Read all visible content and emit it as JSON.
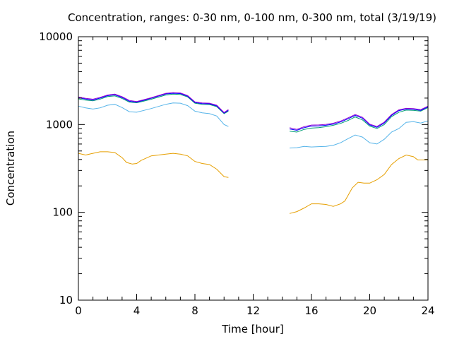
{
  "chart_data": {
    "type": "line",
    "title": "Concentration, ranges: 0-30 nm, 0-100 nm, 0-300 nm, total (3/19/19)",
    "xlabel": "Time [hour]",
    "ylabel": "Concentration",
    "xlim": [
      0,
      24
    ],
    "ylim": [
      10,
      10000
    ],
    "yscale": "log",
    "grid": false,
    "legend": "none",
    "x_ticks": [
      "0",
      "4",
      "8",
      "12",
      "16",
      "20",
      "24"
    ],
    "y_ticks": [
      "10",
      "100",
      "1000",
      "10000"
    ],
    "series": [
      {
        "color": "#e69f00",
        "segments": [
          [
            [
              0,
              470
            ],
            [
              0.5,
              450
            ],
            [
              1,
              470
            ],
            [
              1.5,
              490
            ],
            [
              2,
              490
            ],
            [
              2.5,
              480
            ],
            [
              3,
              420
            ],
            [
              3.3,
              370
            ],
            [
              3.7,
              355
            ],
            [
              4,
              360
            ],
            [
              4.3,
              390
            ],
            [
              5,
              440
            ],
            [
              6,
              460
            ],
            [
              6.5,
              470
            ],
            [
              7,
              460
            ],
            [
              7.5,
              440
            ],
            [
              8,
              380
            ],
            [
              8.5,
              360
            ],
            [
              9,
              350
            ],
            [
              9.5,
              310
            ],
            [
              10,
              255
            ],
            [
              10.3,
              250
            ]
          ],
          [
            [
              14.5,
              97
            ],
            [
              15,
              102
            ],
            [
              15.5,
              112
            ],
            [
              16,
              125
            ],
            [
              16.5,
              125
            ],
            [
              17,
              123
            ],
            [
              17.5,
              117
            ],
            [
              18,
              125
            ],
            [
              18.3,
              135
            ],
            [
              18.8,
              190
            ],
            [
              19.2,
              220
            ],
            [
              19.6,
              215
            ],
            [
              20,
              215
            ],
            [
              20.5,
              235
            ],
            [
              21,
              270
            ],
            [
              21.5,
              350
            ],
            [
              22,
              410
            ],
            [
              22.5,
              450
            ],
            [
              23,
              430
            ],
            [
              23.3,
              395
            ],
            [
              24,
              395
            ]
          ]
        ]
      },
      {
        "color": "#56b4e9",
        "segments": [
          [
            [
              0,
              1620
            ],
            [
              0.5,
              1550
            ],
            [
              1,
              1500
            ],
            [
              1.5,
              1550
            ],
            [
              2,
              1660
            ],
            [
              2.5,
              1700
            ],
            [
              3,
              1560
            ],
            [
              3.5,
              1400
            ],
            [
              4,
              1380
            ],
            [
              4.5,
              1450
            ],
            [
              5,
              1520
            ],
            [
              6,
              1700
            ],
            [
              6.5,
              1760
            ],
            [
              7,
              1750
            ],
            [
              7.5,
              1640
            ],
            [
              8,
              1420
            ],
            [
              8.5,
              1360
            ],
            [
              9,
              1330
            ],
            [
              9.5,
              1250
            ],
            [
              10,
              1000
            ],
            [
              10.3,
              950
            ]
          ],
          [
            [
              14.5,
              540
            ],
            [
              15,
              545
            ],
            [
              15.5,
              565
            ],
            [
              16,
              555
            ],
            [
              16.5,
              560
            ],
            [
              17,
              565
            ],
            [
              17.5,
              580
            ],
            [
              18,
              620
            ],
            [
              18.5,
              690
            ],
            [
              19,
              760
            ],
            [
              19.5,
              720
            ],
            [
              20,
              620
            ],
            [
              20.5,
              600
            ],
            [
              21,
              680
            ],
            [
              21.5,
              820
            ],
            [
              22,
              900
            ],
            [
              22.5,
              1060
            ],
            [
              23,
              1080
            ],
            [
              23.5,
              1040
            ],
            [
              24,
              1100
            ]
          ]
        ]
      },
      {
        "color": "#009e73",
        "segments": [
          [
            [
              0,
              1960
            ],
            [
              0.5,
              1900
            ],
            [
              1,
              1860
            ],
            [
              1.5,
              1950
            ],
            [
              2,
              2080
            ],
            [
              2.5,
              2120
            ],
            [
              3,
              1980
            ],
            [
              3.5,
              1800
            ],
            [
              4,
              1770
            ],
            [
              4.5,
              1850
            ],
            [
              5,
              1940
            ],
            [
              6,
              2170
            ],
            [
              6.5,
              2220
            ],
            [
              7,
              2200
            ],
            [
              7.5,
              2060
            ],
            [
              8,
              1750
            ],
            [
              8.5,
              1700
            ],
            [
              9,
              1690
            ],
            [
              9.5,
              1600
            ],
            [
              10,
              1330
            ],
            [
              10.3,
              1420
            ]
          ],
          [
            [
              14.5,
              840
            ],
            [
              15,
              820
            ],
            [
              15.5,
              880
            ],
            [
              16,
              910
            ],
            [
              16.5,
              920
            ],
            [
              17,
              945
            ],
            [
              17.5,
              980
            ],
            [
              18,
              1030
            ],
            [
              18.5,
              1110
            ],
            [
              19,
              1220
            ],
            [
              19.5,
              1130
            ],
            [
              20,
              960
            ],
            [
              20.5,
              900
            ],
            [
              21,
              1000
            ],
            [
              21.5,
              1230
            ],
            [
              22,
              1380
            ],
            [
              22.5,
              1460
            ],
            [
              23,
              1450
            ],
            [
              23.5,
              1420
            ],
            [
              24,
              1560
            ]
          ]
        ]
      },
      {
        "color": "#0000ff",
        "segments": [
          [
            [
              0,
              2020
            ],
            [
              0.5,
              1950
            ],
            [
              1,
              1900
            ],
            [
              1.5,
              2000
            ],
            [
              2,
              2130
            ],
            [
              2.5,
              2180
            ],
            [
              3,
              2030
            ],
            [
              3.5,
              1840
            ],
            [
              4,
              1800
            ],
            [
              4.5,
              1890
            ],
            [
              5,
              1990
            ],
            [
              6,
              2230
            ],
            [
              6.5,
              2270
            ],
            [
              7,
              2250
            ],
            [
              7.5,
              2100
            ],
            [
              8,
              1780
            ],
            [
              8.5,
              1730
            ],
            [
              9,
              1720
            ],
            [
              9.5,
              1630
            ],
            [
              10,
              1350
            ],
            [
              10.3,
              1450
            ]
          ],
          [
            [
              14.5,
              890
            ],
            [
              15,
              860
            ],
            [
              15.5,
              920
            ],
            [
              16,
              960
            ],
            [
              16.5,
              965
            ],
            [
              17,
              980
            ],
            [
              17.5,
              1010
            ],
            [
              18,
              1070
            ],
            [
              18.5,
              1160
            ],
            [
              19,
              1270
            ],
            [
              19.5,
              1180
            ],
            [
              20,
              990
            ],
            [
              20.5,
              930
            ],
            [
              21,
              1040
            ],
            [
              21.5,
              1270
            ],
            [
              22,
              1440
            ],
            [
              22.5,
              1500
            ],
            [
              23,
              1490
            ],
            [
              23.5,
              1450
            ],
            [
              24,
              1590
            ]
          ]
        ]
      },
      {
        "color": "#9400d3",
        "segments": [
          [
            [
              0,
              2060
            ],
            [
              0.5,
              1990
            ],
            [
              1,
              1940
            ],
            [
              1.5,
              2040
            ],
            [
              2,
              2170
            ],
            [
              2.5,
              2220
            ],
            [
              3,
              2070
            ],
            [
              3.5,
              1880
            ],
            [
              4,
              1830
            ],
            [
              4.5,
              1920
            ],
            [
              5,
              2020
            ],
            [
              6,
              2270
            ],
            [
              6.5,
              2310
            ],
            [
              7,
              2290
            ],
            [
              7.5,
              2140
            ],
            [
              8,
              1810
            ],
            [
              8.5,
              1760
            ],
            [
              9,
              1750
            ],
            [
              9.5,
              1660
            ],
            [
              10,
              1370
            ],
            [
              10.3,
              1480
            ]
          ],
          [
            [
              14.5,
              920
            ],
            [
              15,
              880
            ],
            [
              15.5,
              945
            ],
            [
              16,
              985
            ],
            [
              16.5,
              990
            ],
            [
              17,
              1005
            ],
            [
              17.5,
              1035
            ],
            [
              18,
              1095
            ],
            [
              18.5,
              1190
            ],
            [
              19,
              1300
            ],
            [
              19.5,
              1210
            ],
            [
              20,
              1010
            ],
            [
              20.5,
              950
            ],
            [
              21,
              1065
            ],
            [
              21.5,
              1300
            ],
            [
              22,
              1470
            ],
            [
              22.5,
              1530
            ],
            [
              23,
              1520
            ],
            [
              23.5,
              1480
            ],
            [
              24,
              1620
            ]
          ]
        ]
      }
    ]
  }
}
